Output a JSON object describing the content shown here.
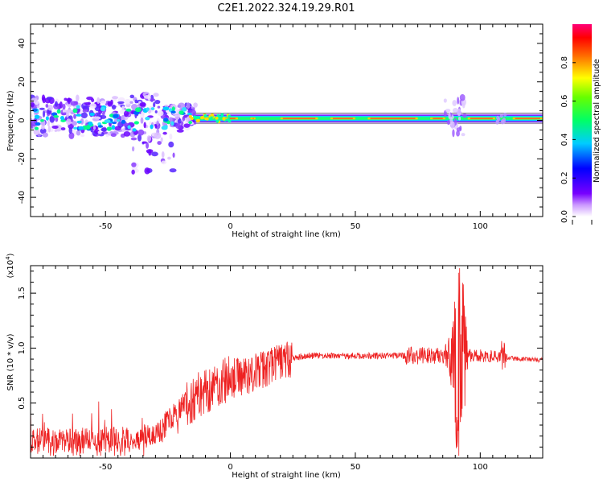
{
  "title": "C2E1.2022.324.19.29.R01",
  "chart_data": [
    {
      "type": "heatmap",
      "xlabel": "Height of straight line (km)",
      "ylabel": "Frequency (Hz)",
      "xlim": [
        -80,
        125
      ],
      "ylim": [
        -50,
        50
      ],
      "x_ticks": [
        -50,
        0,
        50,
        100
      ],
      "y_ticks": [
        -40,
        -20,
        0,
        20,
        40
      ],
      "colorbar": {
        "label": "Normalized spectral amplitude",
        "range": [
          0.0,
          1.0
        ],
        "ticks": [
          0.0,
          0.2,
          0.4,
          0.6,
          0.8
        ],
        "tick_labels": [
          "0.0",
          "0.2",
          "0.4",
          "0.6",
          "0.8"
        ],
        "colors": [
          "#ffffff",
          "#7700ff",
          "#0000ff",
          "#00ffff",
          "#00ff00",
          "#ffff00",
          "#ff0000",
          "#ff0077"
        ]
      },
      "description_values": {
        "band_center_hz": 1,
        "band_half_width_hz": 3
      }
    },
    {
      "type": "line",
      "xlabel": "Height of straight line (km)",
      "ylabel": "SNR (10 * v/v)",
      "y_multiplier": "(x10^4)",
      "xlim": [
        -80,
        125
      ],
      "ylim": [
        0,
        1.75
      ],
      "x_ticks": [
        -50,
        0,
        50,
        100
      ],
      "y_ticks": [
        0.5,
        1.0,
        1.5
      ],
      "y_tick_labels": [
        "0.5",
        "1.0",
        "1.5"
      ],
      "color": "#ee2222",
      "series": [
        {
          "values_envelope": [
            {
              "x": -80,
              "y": 0.15
            },
            {
              "x": -40,
              "y": 0.17
            },
            {
              "x": -30,
              "y": 0.22
            },
            {
              "x": -20,
              "y": 0.45
            },
            {
              "x": -10,
              "y": 0.62
            },
            {
              "x": 0,
              "y": 0.72
            },
            {
              "x": 10,
              "y": 0.78
            },
            {
              "x": 20,
              "y": 0.88
            },
            {
              "x": 30,
              "y": 0.93
            },
            {
              "x": 50,
              "y": 0.93
            },
            {
              "x": 80,
              "y": 0.93
            },
            {
              "x": 88,
              "y": 0.93
            },
            {
              "x": 91,
              "y": 0.93
            },
            {
              "x": 100,
              "y": 0.93
            },
            {
              "x": 110,
              "y": 0.91
            },
            {
              "x": 125,
              "y": 0.89
            }
          ]
        }
      ]
    }
  ]
}
